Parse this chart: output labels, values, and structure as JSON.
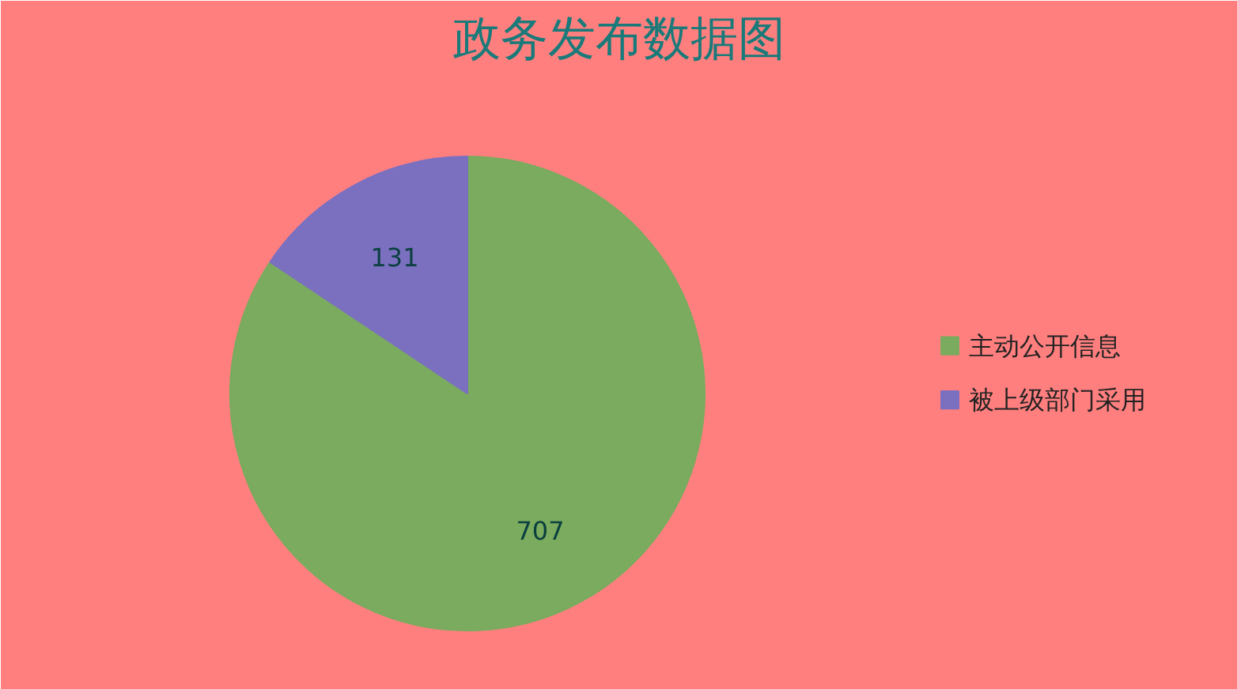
{
  "chart_data": {
    "type": "pie",
    "title": "政务发布数据图",
    "categories": [
      "主动公开信息",
      "被上级部门采用"
    ],
    "values": [
      707,
      131
    ],
    "colors": [
      "#7aab5e",
      "#7b70c0"
    ],
    "data_labels": true,
    "legend": "right"
  }
}
